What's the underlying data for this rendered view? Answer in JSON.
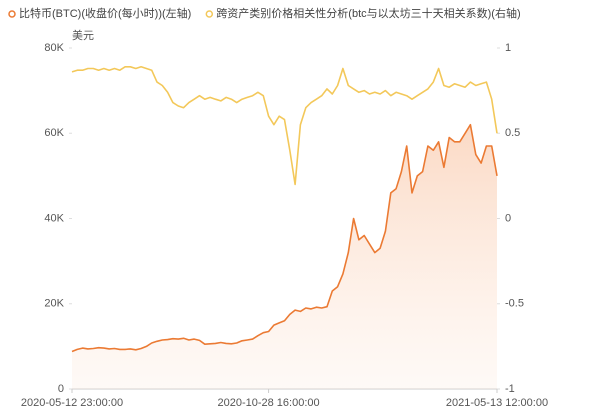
{
  "chart_data": {
    "type": "line",
    "y_axis_unit": "美元",
    "categories": [
      "2020-05-12 23:00:00",
      null,
      null,
      null,
      null,
      null,
      null,
      null,
      null,
      null,
      null,
      null,
      null,
      null,
      null,
      null,
      null,
      null,
      null,
      null,
      null,
      null,
      null,
      null,
      null,
      null,
      null,
      null,
      null,
      null,
      null,
      null,
      null,
      null,
      null,
      null,
      null,
      "2020-10-28 16:00:00",
      null,
      null,
      null,
      null,
      null,
      null,
      null,
      null,
      null,
      null,
      null,
      null,
      null,
      null,
      null,
      null,
      null,
      null,
      null,
      null,
      null,
      null,
      null,
      null,
      null,
      null,
      null,
      null,
      null,
      null,
      null,
      null,
      null,
      null,
      null,
      null,
      null,
      null,
      null,
      null,
      null,
      null,
      "2021-05-13 12:00:00"
    ],
    "series": [
      {
        "name": "比特币(BTC)(收盘价(每小时))(左轴)",
        "color": "#eb7a33",
        "area": true,
        "values": [
          8800,
          9300,
          9600,
          9400,
          9500,
          9700,
          9600,
          9400,
          9500,
          9300,
          9300,
          9400,
          9200,
          9500,
          10000,
          10800,
          11200,
          11500,
          11600,
          11800,
          11700,
          11900,
          11500,
          11700,
          11400,
          10500,
          10600,
          10700,
          10900,
          10700,
          10600,
          10800,
          11300,
          11500,
          11700,
          12500,
          13200,
          13500,
          15000,
          15500,
          16000,
          17500,
          18500,
          18200,
          19000,
          18800,
          19200,
          19000,
          19300,
          23000,
          24000,
          27000,
          32000,
          40000,
          35000,
          36000,
          34000,
          32000,
          33000,
          37000,
          46000,
          47000,
          51000,
          57000,
          46000,
          50000,
          51000,
          57000,
          56000,
          58000,
          52000,
          59000,
          58000,
          58000,
          60000,
          62000,
          55000,
          53000,
          57000,
          57000,
          50000
        ]
      },
      {
        "name": "跨资产类别价格相关性分析(btc与以太坊三十天相关系数)(右轴)",
        "color": "#f3c85a",
        "axis": "y2",
        "values": [
          0.86,
          0.87,
          0.87,
          0.88,
          0.88,
          0.87,
          0.88,
          0.87,
          0.88,
          0.87,
          0.89,
          0.89,
          0.88,
          0.89,
          0.88,
          0.87,
          0.8,
          0.78,
          0.74,
          0.68,
          0.66,
          0.65,
          0.68,
          0.7,
          0.72,
          0.7,
          0.71,
          0.7,
          0.69,
          0.71,
          0.7,
          0.68,
          0.7,
          0.71,
          0.72,
          0.74,
          0.72,
          0.6,
          0.55,
          0.6,
          0.58,
          0.4,
          0.2,
          0.55,
          0.65,
          0.68,
          0.7,
          0.72,
          0.76,
          0.73,
          0.78,
          0.88,
          0.78,
          0.76,
          0.74,
          0.75,
          0.73,
          0.74,
          0.73,
          0.75,
          0.72,
          0.74,
          0.73,
          0.72,
          0.7,
          0.72,
          0.74,
          0.76,
          0.8,
          0.88,
          0.78,
          0.77,
          0.79,
          0.78,
          0.77,
          0.8,
          0.78,
          0.79,
          0.8,
          0.7,
          0.5
        ]
      }
    ],
    "ylim": [
      0,
      80000
    ],
    "yticks": [
      0,
      {
        "value": 20000,
        "label": "20K"
      },
      {
        "value": 40000,
        "label": "40K"
      },
      {
        "value": 60000,
        "label": "60K"
      },
      {
        "value": 80000,
        "label": "80K"
      }
    ],
    "y2lim": [
      -1,
      1
    ],
    "y2ticks": [
      -1,
      -0.5,
      0,
      0.5,
      1
    ],
    "legend": "top"
  }
}
